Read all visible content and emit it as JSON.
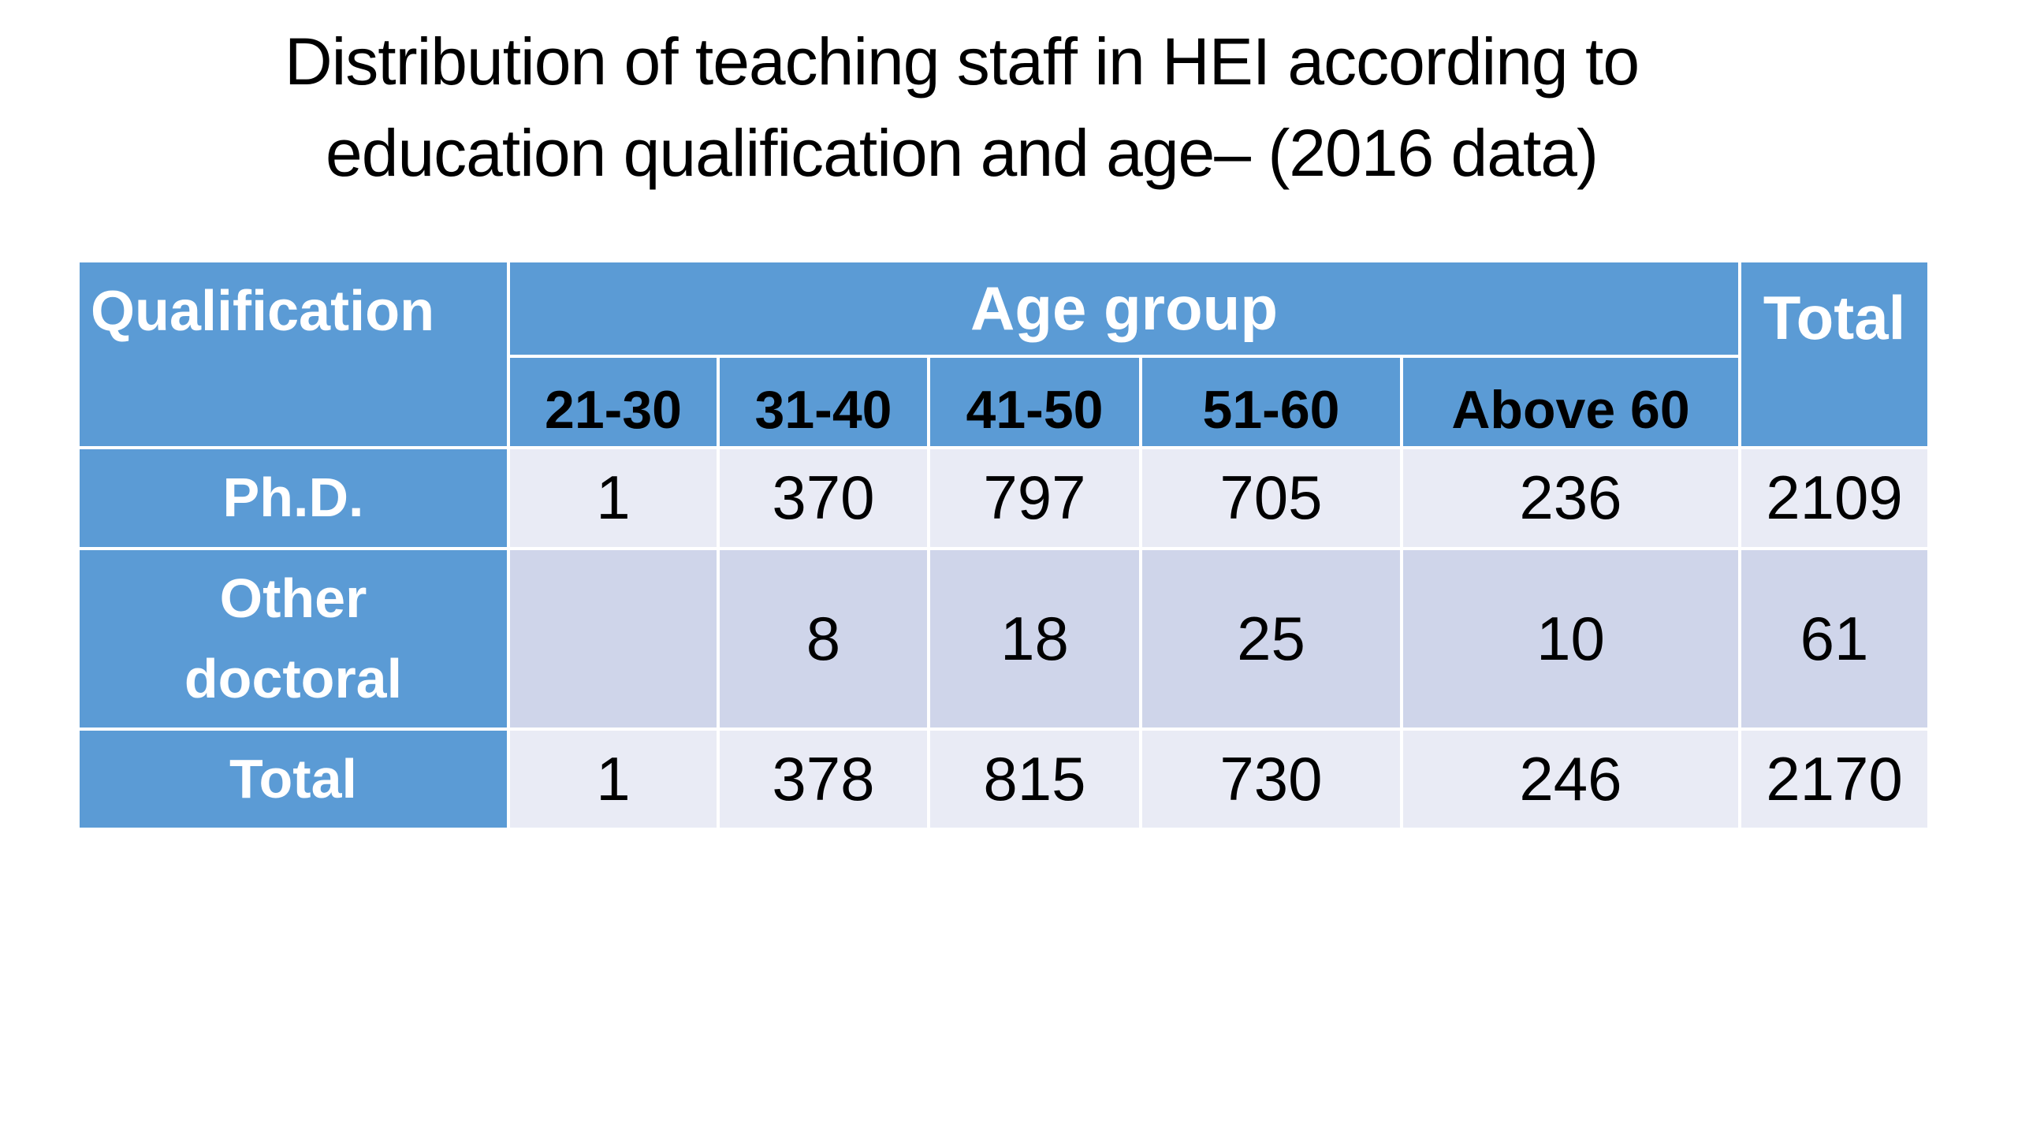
{
  "title": [
    "Distribution of teaching staff in HEI according to",
    "education qualification and age– (2016 data)"
  ],
  "table": {
    "header": {
      "qualification": "Qualification",
      "age_group": "Age group",
      "total": "Total",
      "age_columns": [
        "21-30",
        "31-40",
        "41-50",
        "51-60",
        "Above 60"
      ]
    },
    "rows": [
      {
        "label": "Ph.D.",
        "values": [
          1,
          370,
          797,
          705,
          236
        ],
        "total": 2109
      },
      {
        "label": "Other doctoral",
        "values": [
          null,
          8,
          18,
          25,
          10
        ],
        "total": 61
      },
      {
        "label": "Total",
        "values": [
          1,
          378,
          815,
          730,
          246
        ],
        "total": 2170
      }
    ]
  }
}
